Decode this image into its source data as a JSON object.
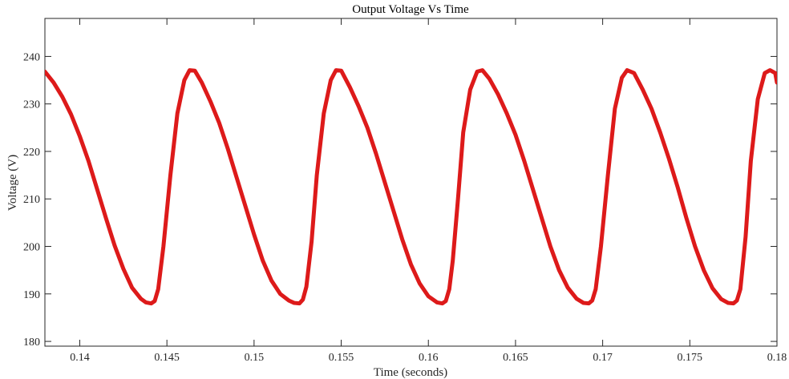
{
  "chart_data": {
    "type": "line",
    "title": "Output Voltage Vs Time",
    "xlabel": "Time (seconds)",
    "ylabel": "Voltage (V)",
    "xlim": [
      0.138,
      0.18
    ],
    "ylim": [
      179,
      248
    ],
    "xticks": [
      {
        "value": 0.14,
        "label": "0.14"
      },
      {
        "value": 0.145,
        "label": "0.145"
      },
      {
        "value": 0.15,
        "label": "0.15"
      },
      {
        "value": 0.155,
        "label": "0.155"
      },
      {
        "value": 0.16,
        "label": "0.16"
      },
      {
        "value": 0.165,
        "label": "0.165"
      },
      {
        "value": 0.17,
        "label": "0.17"
      },
      {
        "value": 0.175,
        "label": "0.175"
      },
      {
        "value": 0.18,
        "label": "0.18"
      }
    ],
    "yticks": [
      {
        "value": 180,
        "label": "180"
      },
      {
        "value": 190,
        "label": "190"
      },
      {
        "value": 200,
        "label": "200"
      },
      {
        "value": 210,
        "label": "210"
      },
      {
        "value": 220,
        "label": "220"
      },
      {
        "value": 230,
        "label": "230"
      },
      {
        "value": 240,
        "label": "240"
      }
    ],
    "grid": false,
    "series": [
      {
        "color": "#dd1a1a",
        "x": [
          0.138,
          0.1385,
          0.139,
          0.1395,
          0.14,
          0.1405,
          0.141,
          0.1415,
          0.142,
          0.1425,
          0.143,
          0.1435,
          0.1438,
          0.1441,
          0.1443,
          0.1445,
          0.1448,
          0.1452,
          0.1456,
          0.146,
          0.1463,
          0.1466,
          0.147,
          0.1475,
          0.148,
          0.1485,
          0.149,
          0.1495,
          0.15,
          0.1505,
          0.151,
          0.1515,
          0.152,
          0.1523,
          0.1526,
          0.1528,
          0.153,
          0.1533,
          0.1536,
          0.154,
          0.1544,
          0.1547,
          0.155,
          0.1555,
          0.156,
          0.1565,
          0.157,
          0.1575,
          0.158,
          0.1585,
          0.159,
          0.1595,
          0.16,
          0.1605,
          0.1608,
          0.161,
          0.1612,
          0.1614,
          0.1617,
          0.162,
          0.1624,
          0.1628,
          0.1631,
          0.1635,
          0.164,
          0.1645,
          0.165,
          0.1655,
          0.166,
          0.1665,
          0.167,
          0.1675,
          0.168,
          0.1685,
          0.1689,
          0.1692,
          0.1694,
          0.1696,
          0.1699,
          0.1703,
          0.1707,
          0.1711,
          0.1714,
          0.1718,
          0.1723,
          0.1728,
          0.1733,
          0.1738,
          0.1743,
          0.1748,
          0.1753,
          0.1758,
          0.1763,
          0.1768,
          0.1772,
          0.1775,
          0.1777,
          0.1779,
          0.1782,
          0.1785,
          0.1789,
          0.1793,
          0.1796,
          0.1799,
          0.18
        ],
        "y": [
          236.8,
          234.5,
          231.5,
          227.8,
          223.2,
          218.0,
          212.0,
          206.0,
          200.2,
          195.3,
          191.3,
          189.0,
          188.2,
          188.0,
          188.5,
          191.0,
          200.0,
          215.0,
          228.0,
          235.0,
          237.1,
          237.0,
          234.5,
          230.5,
          226.0,
          220.5,
          214.5,
          208.5,
          202.5,
          197.0,
          192.8,
          190.0,
          188.6,
          188.1,
          188.0,
          188.8,
          191.5,
          201.0,
          215.0,
          228.0,
          235.0,
          237.1,
          237.0,
          233.5,
          229.5,
          225.0,
          219.5,
          213.5,
          207.5,
          201.5,
          196.2,
          192.2,
          189.5,
          188.2,
          188.0,
          188.5,
          191.0,
          197.0,
          210.0,
          224.0,
          233.0,
          236.8,
          237.1,
          235.3,
          232.0,
          228.0,
          223.5,
          218.0,
          212.0,
          206.0,
          200.0,
          195.0,
          191.3,
          189.0,
          188.1,
          188.0,
          188.6,
          191.0,
          200.0,
          215.0,
          229.0,
          235.5,
          237.1,
          236.5,
          233.0,
          229.0,
          224.0,
          218.5,
          212.5,
          206.0,
          200.0,
          195.0,
          191.2,
          188.9,
          188.1,
          188.0,
          188.6,
          191.0,
          202.0,
          218.0,
          231.0,
          236.5,
          237.1,
          236.5,
          234.5
        ]
      }
    ]
  }
}
